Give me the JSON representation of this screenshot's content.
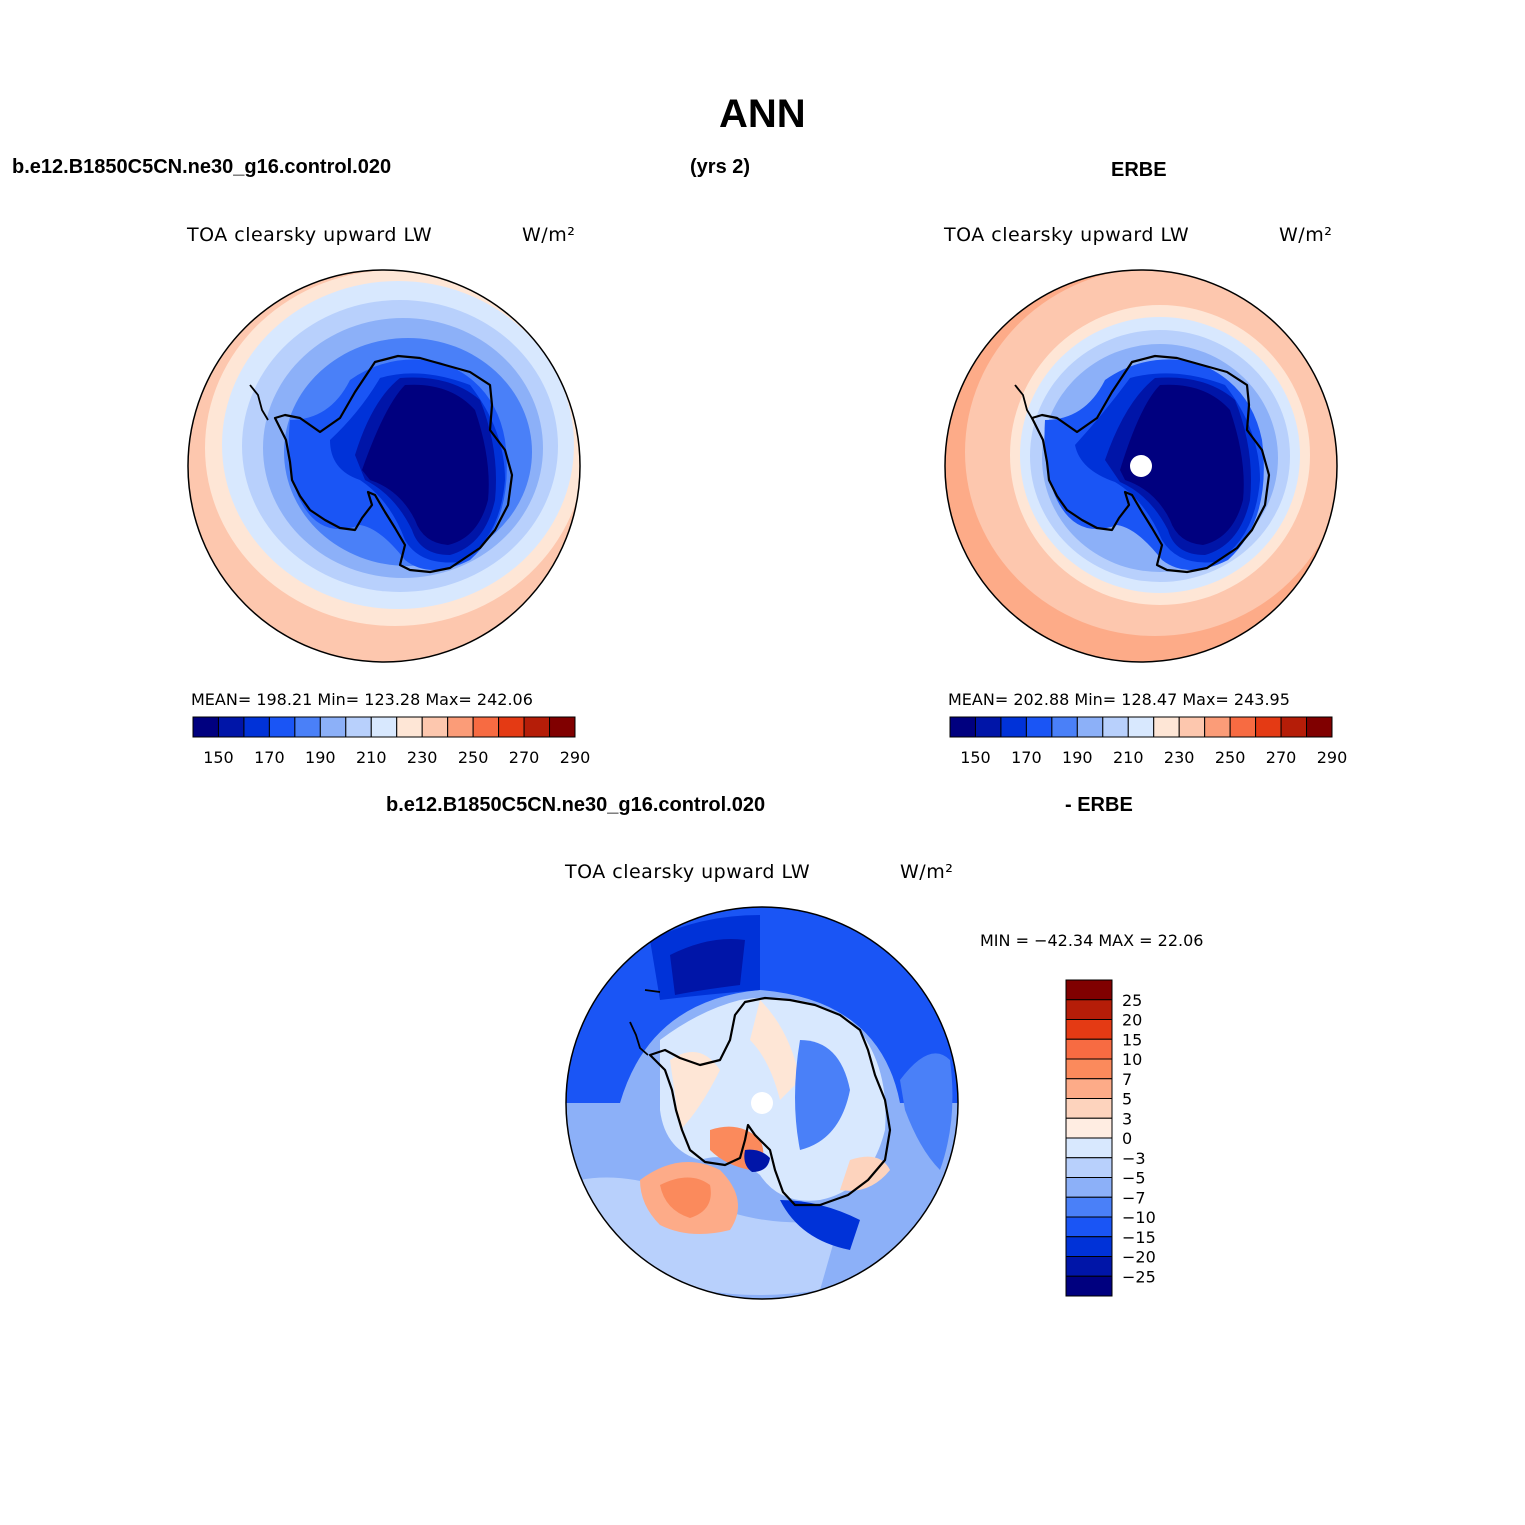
{
  "figure": {
    "title": "ANN",
    "header_left": "b.e12.B1850C5CN.ne30_g16.control.020",
    "header_center": "(yrs 2)",
    "header_right": "ERBE",
    "diff_header_left": "b.e12.B1850C5CN.ne30_g16.control.020",
    "diff_header_right": "- ERBE"
  },
  "panels": [
    {
      "id": "model",
      "var_title": "TOA clearsky upward LW",
      "units": "W/m²",
      "stats": "MEAN=  198.21   Min=  123.28   Max=  242.06",
      "has_pole_hole": false
    },
    {
      "id": "obs",
      "var_title": "TOA clearsky upward LW",
      "units": "W/m²",
      "stats": "MEAN=  202.88   Min=  128.47   Max=  243.95",
      "has_pole_hole": true
    },
    {
      "id": "diff",
      "var_title": "TOA clearsky upward LW",
      "units": "W/m²",
      "stats": "MIN = −42.34  MAX =   22.06",
      "has_pole_hole": true
    }
  ],
  "colorbar_abs": {
    "colors": [
      "#00007f",
      "#0015a8",
      "#0032d8",
      "#1a55f5",
      "#4a80f8",
      "#8cb0f8",
      "#b8d0fc",
      "#d8e8fe",
      "#fee6d6",
      "#fdc7ae",
      "#fb9c78",
      "#f76b42",
      "#e43a14",
      "#b51d08",
      "#800000"
    ],
    "tick_labels": [
      "150",
      "170",
      "190",
      "210",
      "230",
      "250",
      "270",
      "290"
    ]
  },
  "colorbar_diff": {
    "colors": [
      "#800000",
      "#b51d08",
      "#e43a14",
      "#f76b42",
      "#fb8a5c",
      "#fdab88",
      "#fdd3bd",
      "#ffede2",
      "#d8e8fe",
      "#b8d0fc",
      "#8cb0f8",
      "#4a80f8",
      "#1a55f5",
      "#0032d8",
      "#0015a8",
      "#00007f"
    ],
    "tick_labels": [
      "25",
      "20",
      "15",
      "10",
      "7",
      "5",
      "3",
      "0",
      "−3",
      "−5",
      "−7",
      "−10",
      "−15",
      "−20",
      "−25"
    ]
  }
}
